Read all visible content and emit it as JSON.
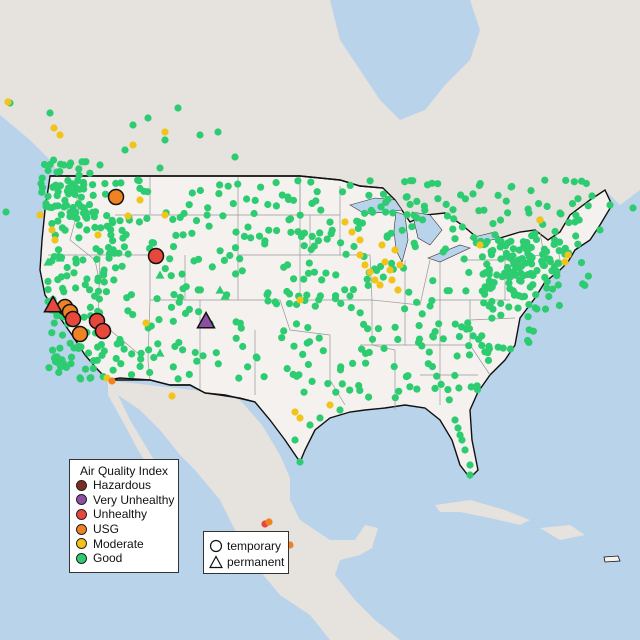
{
  "legend": {
    "title": "Air Quality Index",
    "items": [
      {
        "label": "Hazardous",
        "color": "#7e2c23"
      },
      {
        "label": "Very Unhealthy",
        "color": "#8e4fa2"
      },
      {
        "label": "Unhealthy",
        "color": "#e8473c"
      },
      {
        "label": "USG",
        "color": "#ef8222"
      },
      {
        "label": "Moderate",
        "color": "#f2c318"
      },
      {
        "label": "Good",
        "color": "#2ecc71"
      }
    ]
  },
  "shape_legend": {
    "items": [
      {
        "label": "temporary",
        "icon": "circle-icon"
      },
      {
        "label": "permanent",
        "icon": "triangle-icon"
      }
    ]
  },
  "colors": {
    "water": "#b9d3ea",
    "us_land": "#f4f1ee",
    "other_land": "#e6e2de",
    "good": "#2ecc71",
    "moderate": "#f2c318",
    "usg": "#ef8222",
    "unhealthy": "#e8473c",
    "very_unhealthy": "#8e4fa2"
  }
}
